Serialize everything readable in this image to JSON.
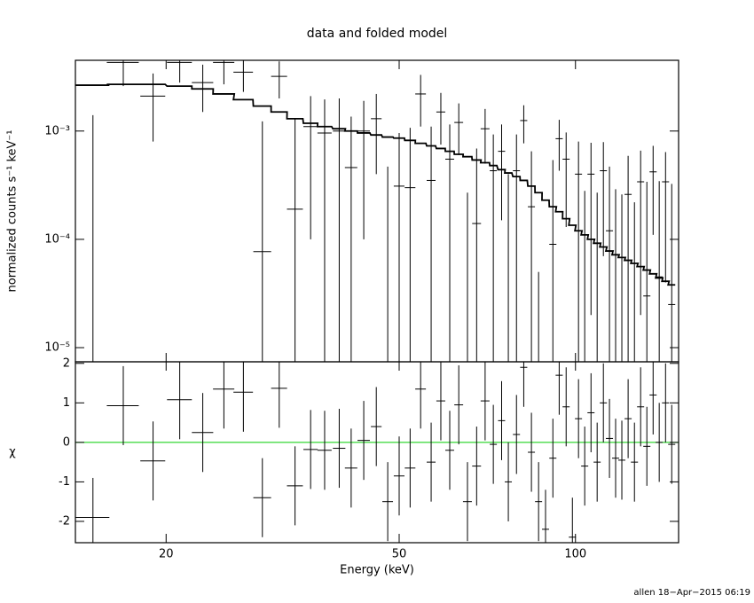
{
  "chart_data": [
    {
      "type": "errorbar",
      "title": "data and folded model",
      "ylabel": "normalized counts s⁻¹ keV⁻¹",
      "xlog": true,
      "ylog": true,
      "xlim": [
        14,
        150
      ],
      "ylim": [
        7.4e-06,
        0.0045
      ],
      "xticks": [
        20,
        50,
        100
      ],
      "yticks": [
        {
          "value": 1e-05,
          "label": "10⁻⁵"
        },
        {
          "value": 0.0001,
          "label": "10⁻⁴"
        },
        {
          "value": 0.001,
          "label": "10⁻³"
        }
      ],
      "color": "#000000",
      "x": [
        15.0,
        16.9,
        19.0,
        21.1,
        23.1,
        25.1,
        27.1,
        29.2,
        31.2,
        33.2,
        35.3,
        37.3,
        39.5,
        41.4,
        43.5,
        45.7,
        47.8,
        50.0,
        52.2,
        54.4,
        56.7,
        58.9,
        61.0,
        63.2,
        65.4,
        67.8,
        70.1,
        72.4,
        74.8,
        76.8,
        79.3,
        81.6,
        84.1,
        86.5,
        88.9,
        91.5,
        93.8,
        96.4,
        98.8,
        101.2,
        103.7,
        106.3,
        108.9,
        111.6,
        114.3,
        117.1,
        120.0,
        123.0,
        126.1,
        129.2,
        132.4,
        135.7,
        139.0,
        142.5,
        146.0
      ],
      "xerr": [
        1.0,
        1.06,
        0.93,
        1.03,
        0.97,
        1.05,
        1.04,
        1.02,
        0.98,
        1.04,
        0.99,
        1.04,
        0.97,
        1.01,
        1.06,
        0.96,
        1.0,
        1.05,
        1.09,
        1.14,
        0.99,
        1.03,
        1.06,
        1.1,
        1.14,
        1.18,
        1.22,
        1.01,
        1.04,
        1.07,
        1.1,
        1.14,
        1.17,
        1.2,
        1.24,
        1.28,
        1.31,
        1.35,
        1.38,
        1.41,
        1.45,
        1.48,
        1.52,
        1.56,
        1.6,
        1.63,
        1.67,
        1.72,
        1.76,
        1.8,
        1.85,
        1.9,
        1.94,
        1.99,
        2.04
      ],
      "values": [
        -4e-05,
        0.0043,
        0.0021,
        0.0043,
        0.0028,
        0.0043,
        0.0035,
        7.7e-05,
        0.0032,
        0.00019,
        0.0011,
        0.00096,
        0.001,
        0.00046,
        0.001,
        0.0013,
        -0.00038,
        0.00031,
        0.0003,
        0.0022,
        0.00035,
        0.0015,
        0.00055,
        0.0012,
        -0.00033,
        0.00014,
        0.00105,
        0.00043,
        0.00065,
        -0.0001,
        0.00043,
        0.00125,
        0.0002,
        -0.0004,
        -0.00076,
        9e-05,
        0.00085,
        0.00055,
        -0.00085,
        0.0004,
        -0.00012,
        0.0004,
        -9e-05,
        0.00043,
        0.00012,
        -5e-05,
        -8e-05,
        0.00026,
        -0.0001,
        0.00034,
        3e-05,
        0.00042,
        4.5e-05,
        0.00034,
        2.5e-05
      ],
      "errors": [
        0.00144,
        0.0017,
        0.0013,
        0.0015,
        0.0013,
        0.0016,
        0.0012,
        0.00115,
        0.0012,
        0.0011,
        0.001,
        0.001,
        0.001,
        0.0009,
        0.0009,
        0.0009,
        0.00085,
        0.00065,
        0.00077,
        0.0011,
        0.00075,
        0.00075,
        0.0006,
        0.0006,
        0.0006,
        0.00055,
        0.00055,
        0.0005,
        0.0005,
        0.0005,
        0.0005,
        0.00048,
        0.00045,
        0.00045,
        0.00045,
        0.00045,
        0.00042,
        0.00042,
        0.0004,
        0.0004,
        0.0004,
        0.00038,
        0.00036,
        0.00036,
        0.00035,
        0.00034,
        0.00034,
        0.00033,
        0.00032,
        0.00032,
        0.00031,
        0.00031,
        0.0003,
        0.0003,
        0.0003
      ],
      "model_values": [
        0.00265,
        0.0027,
        0.0027,
        0.0026,
        0.00245,
        0.0022,
        0.00195,
        0.0017,
        0.0015,
        0.0013,
        0.00118,
        0.0011,
        0.00105,
        0.001,
        0.00096,
        0.00092,
        0.00088,
        0.00086,
        0.00082,
        0.00077,
        0.00073,
        0.00069,
        0.00065,
        0.00061,
        0.00058,
        0.00054,
        0.00051,
        0.00048,
        0.00044,
        0.00041,
        0.00038,
        0.00035,
        0.00031,
        0.00027,
        0.00023,
        0.0002,
        0.00018,
        0.000155,
        0.000135,
        0.00012,
        0.00011,
        0.0001,
        9.2e-05,
        8.5e-05,
        7.8e-05,
        7.2e-05,
        6.8e-05,
        6.4e-05,
        6e-05,
        5.6e-05,
        5.2e-05,
        4.8e-05,
        4.4e-05,
        4.1e-05,
        3.8e-05
      ]
    },
    {
      "type": "residual",
      "xlabel": "Energy (keV)",
      "ylabel": "χ",
      "xlog": true,
      "xlim": [
        14,
        150
      ],
      "ylim": [
        -2.54,
        2.04
      ],
      "xticks": [
        20,
        50,
        100
      ],
      "yticks": [
        -2,
        -1,
        0,
        1,
        2
      ],
      "color": "#000000",
      "reference_line": {
        "value": 0,
        "color": "#00cc00"
      },
      "x": [
        15.0,
        16.9,
        19.0,
        21.1,
        23.1,
        25.1,
        27.1,
        29.2,
        31.2,
        33.2,
        35.3,
        37.3,
        39.5,
        41.4,
        43.5,
        45.7,
        47.8,
        50.0,
        52.2,
        54.4,
        56.7,
        58.9,
        61.0,
        63.2,
        65.4,
        67.8,
        70.1,
        72.4,
        74.8,
        76.8,
        79.3,
        81.6,
        84.1,
        86.5,
        88.9,
        91.5,
        93.8,
        96.4,
        98.8,
        101.2,
        103.7,
        106.3,
        108.9,
        111.6,
        114.3,
        117.1,
        120.0,
        123.0,
        126.1,
        129.2,
        132.4,
        135.7,
        139.0,
        142.5,
        146.0
      ],
      "xerr": [
        1.0,
        1.06,
        0.93,
        1.03,
        0.97,
        1.05,
        1.04,
        1.02,
        0.98,
        1.04,
        0.99,
        1.04,
        0.97,
        1.01,
        1.06,
        0.96,
        1.0,
        1.05,
        1.09,
        1.14,
        0.99,
        1.03,
        1.06,
        1.1,
        1.14,
        1.18,
        1.22,
        1.01,
        1.04,
        1.07,
        1.1,
        1.14,
        1.17,
        1.2,
        1.24,
        1.28,
        1.31,
        1.35,
        1.38,
        1.41,
        1.45,
        1.48,
        1.52,
        1.56,
        1.6,
        1.63,
        1.67,
        1.72,
        1.76,
        1.8,
        1.85,
        1.9,
        1.94,
        1.99,
        2.04
      ],
      "values": [
        -1.9,
        0.93,
        -0.47,
        1.08,
        0.25,
        1.35,
        1.27,
        -1.4,
        1.37,
        -1.1,
        -0.18,
        -0.2,
        -0.15,
        -0.65,
        0.05,
        0.4,
        -1.5,
        -0.85,
        -0.65,
        1.35,
        -0.5,
        1.05,
        -0.2,
        0.95,
        -1.5,
        -0.6,
        1.05,
        -0.05,
        0.55,
        -1.0,
        0.2,
        1.9,
        -0.25,
        -1.5,
        -2.2,
        -0.4,
        1.7,
        0.9,
        -2.4,
        0.6,
        -0.6,
        0.75,
        -0.5,
        1.0,
        0.1,
        -0.4,
        -0.45,
        0.6,
        -0.5,
        0.9,
        -0.1,
        1.2,
        0.0,
        1.0,
        -0.05
      ],
      "errors": [
        1,
        1,
        1,
        1,
        1,
        1,
        1,
        1,
        1,
        1,
        1,
        1,
        1,
        1,
        1,
        1,
        1,
        1,
        1,
        1,
        1,
        1,
        1,
        1,
        1,
        1,
        1,
        1,
        1,
        1,
        1,
        1,
        1,
        1,
        1,
        1,
        1,
        1,
        1,
        1,
        1,
        1,
        1,
        1,
        1,
        1,
        1,
        1,
        1,
        1,
        1,
        1,
        1,
        1,
        1
      ]
    }
  ],
  "footer": "allen 18−Apr−2015 06:19"
}
